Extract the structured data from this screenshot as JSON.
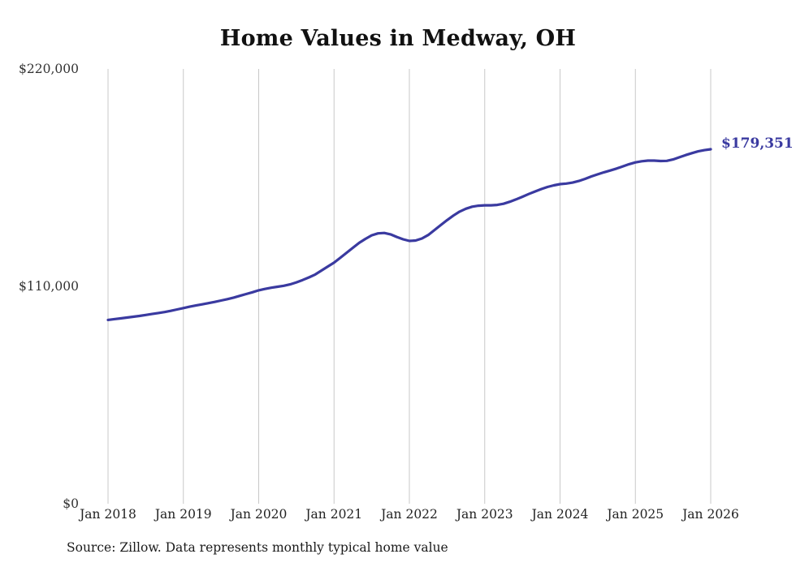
{
  "title": "Home Values in Medway, OH",
  "source_note": "Source: Zillow. Data represents monthly typical home value",
  "end_label": "$179,351",
  "colors": {
    "line": "#3a3aa0",
    "grid": "#c8c8c8",
    "text": "#222222"
  },
  "chart_data": {
    "type": "line",
    "title": "Home Values in Medway, OH",
    "xlabel": "",
    "ylabel": "",
    "ylim": [
      0,
      220000
    ],
    "y_ticks": [
      0,
      110000,
      220000
    ],
    "y_tick_labels": [
      "$0",
      "$110,000",
      "$220,000"
    ],
    "x_tick_labels": [
      "Jan 2018",
      "Jan 2019",
      "Jan 2020",
      "Jan 2021",
      "Jan 2022",
      "Jan 2023",
      "Jan 2024",
      "Jan 2025",
      "Jan 2026"
    ],
    "grid": "vertical-only",
    "legend": "none",
    "final_value": 179351,
    "final_value_label": "$179,351",
    "series": [
      {
        "name": "monthly-typical-home-value",
        "start_month": "Jan 2018",
        "frequency": "monthly",
        "values": [
          93000,
          93400,
          93800,
          94200,
          94600,
          95000,
          95500,
          96000,
          96500,
          97000,
          97600,
          98300,
          99000,
          99700,
          100300,
          100900,
          101500,
          102100,
          102800,
          103500,
          104300,
          105200,
          106100,
          107000,
          108000,
          108700,
          109300,
          109800,
          110300,
          111000,
          112000,
          113200,
          114500,
          116000,
          118000,
          120000,
          122000,
          124500,
          127000,
          129500,
          132000,
          134000,
          135800,
          136800,
          137000,
          136300,
          135000,
          133800,
          133000,
          133200,
          134200,
          136000,
          138500,
          141000,
          143500,
          145800,
          147800,
          149300,
          150300,
          150800,
          151000,
          151000,
          151200,
          151800,
          152800,
          154000,
          155300,
          156700,
          158000,
          159200,
          160300,
          161100,
          161700,
          162000,
          162500,
          163300,
          164400,
          165600,
          166700,
          167700,
          168600,
          169600,
          170700,
          171800,
          172700,
          173300,
          173600,
          173600,
          173400,
          173500,
          174200,
          175300,
          176400,
          177400,
          178300,
          178900,
          179351
        ]
      }
    ]
  }
}
